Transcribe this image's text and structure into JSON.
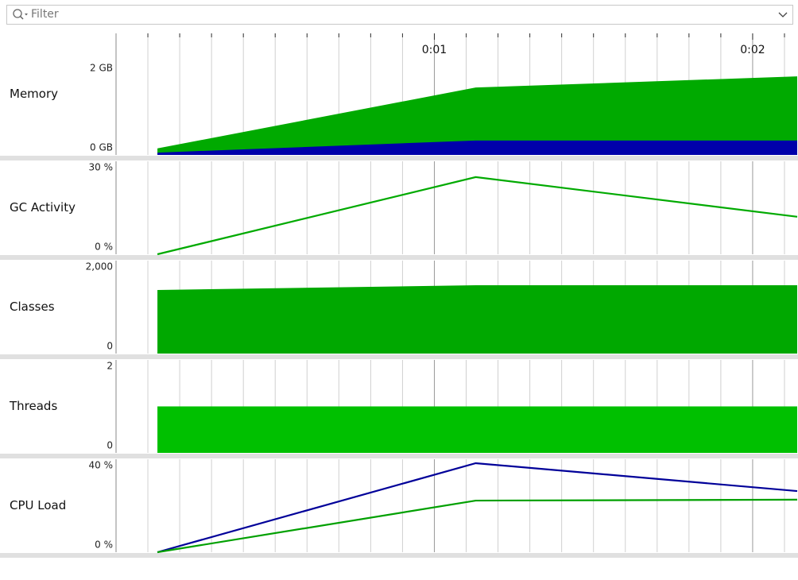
{
  "filter_placeholder": "Filter",
  "time_axis": {
    "xlim": [
      0,
      2.14
    ],
    "xticks": [
      {
        "value": 1,
        "label": "0:01"
      },
      {
        "value": 2,
        "label": "0:02"
      }
    ],
    "xgrid": [
      0.1,
      0.2,
      0.3,
      0.4,
      0.5,
      0.6,
      0.7,
      0.8,
      0.9,
      1.1,
      1.2,
      1.3,
      1.4,
      1.5,
      1.6,
      1.7,
      1.8,
      1.9,
      2.1
    ]
  },
  "chart_data": [
    {
      "type": "area",
      "label": "Memory",
      "x": [
        0.13,
        1.13,
        2.14
      ],
      "series": [
        {
          "color": "#00aa00",
          "values": [
            0.14,
            1.45,
            1.69
          ]
        },
        {
          "color": "#0000aa",
          "values": [
            0.05,
            0.31,
            0.31
          ]
        }
      ],
      "ylim": [
        0,
        2
      ],
      "yticks": [
        {
          "value": 0,
          "label": "0 GB"
        },
        {
          "value": 2,
          "label": "2 GB"
        }
      ]
    },
    {
      "type": "line",
      "label": "GC Activity",
      "x": [
        0.13,
        1.13,
        2.14
      ],
      "series": [
        {
          "color": "#00aa00",
          "values": [
            0,
            24.9,
            12.1
          ]
        }
      ],
      "ylim": [
        0,
        30
      ],
      "yticks": [
        {
          "value": 0,
          "label": "0 %"
        },
        {
          "value": 30,
          "label": "30 %"
        }
      ]
    },
    {
      "type": "area",
      "label": "Classes",
      "x": [
        0.13,
        1.13,
        2.14
      ],
      "series": [
        {
          "color": "#00a800",
          "values": [
            1368,
            1470,
            1470
          ]
        }
      ],
      "ylim": [
        0,
        2000
      ],
      "yticks": [
        0,
        {
          "value": 2000,
          "label": "2,000"
        }
      ]
    },
    {
      "type": "area",
      "label": "Threads",
      "x": [
        0.13,
        1.13,
        2.14
      ],
      "series": [
        {
          "color": "#00c000",
          "values": [
            1,
            1,
            1
          ]
        }
      ],
      "ylim": [
        0,
        2
      ],
      "yticks": [
        0,
        2
      ]
    },
    {
      "type": "line",
      "label": "CPU Load",
      "x": [
        0.13,
        1.13,
        2.14
      ],
      "series": [
        {
          "color": "#000099",
          "values": [
            0,
            38.3,
            26.3
          ]
        },
        {
          "color": "#00a000",
          "values": [
            0,
            22.2,
            22.6
          ]
        }
      ],
      "ylim": [
        0,
        40
      ],
      "yticks": [
        {
          "value": 0,
          "label": "0 %"
        },
        {
          "value": 40,
          "label": "40 %"
        }
      ]
    }
  ]
}
